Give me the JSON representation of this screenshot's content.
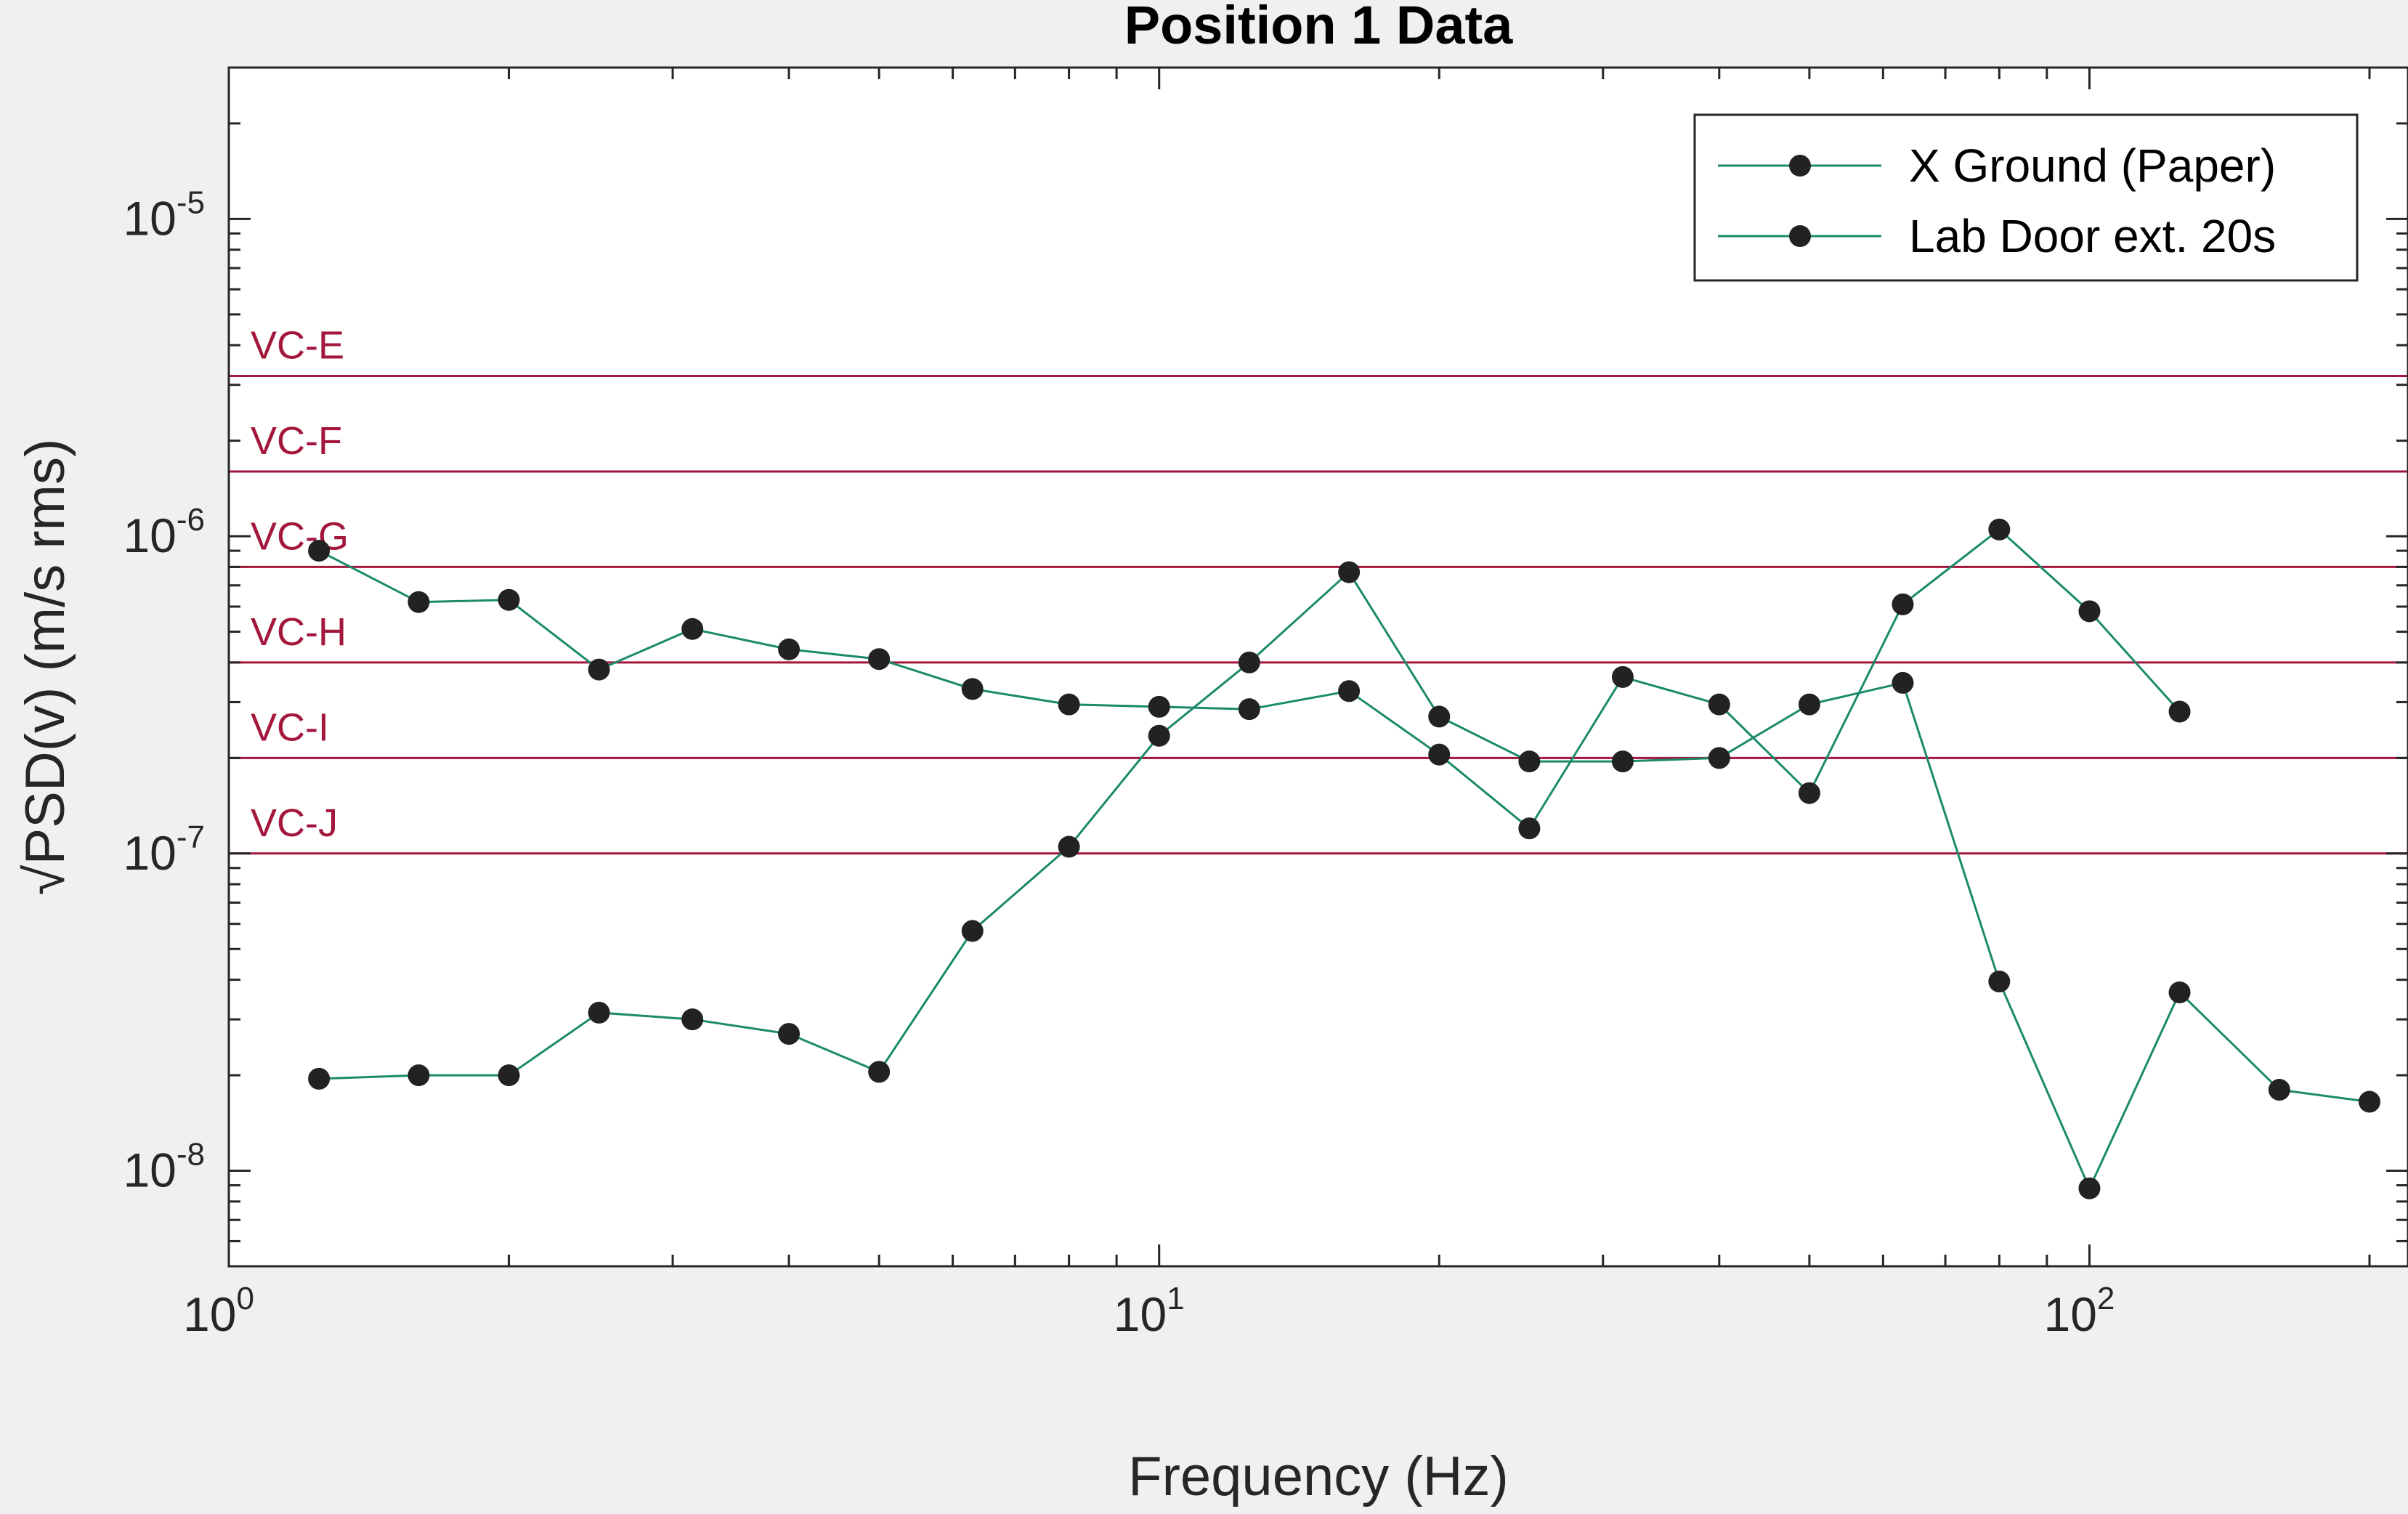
{
  "chart_data": {
    "type": "line",
    "title": "Position 1 Data",
    "xlabel": "Frequency (Hz)",
    "ylabel": "√PSD(v) (m/s rms)",
    "xscale": "log",
    "yscale": "log",
    "xlim": [
      1,
      220
    ],
    "ylim": [
      5e-09,
      3e-05
    ],
    "x_ticks": [
      {
        "base": "10",
        "exp": "0",
        "value": 1
      },
      {
        "base": "10",
        "exp": "1",
        "value": 10
      },
      {
        "base": "10",
        "exp": "2",
        "value": 100
      }
    ],
    "y_ticks": [
      {
        "base": "10",
        "exp": "-8",
        "value": 1e-08
      },
      {
        "base": "10",
        "exp": "-7",
        "value": 1e-07
      },
      {
        "base": "10",
        "exp": "-6",
        "value": 1e-06
      },
      {
        "base": "10",
        "exp": "-5",
        "value": 1e-05
      }
    ],
    "grid": false,
    "legend_position": "top-right",
    "line_color": "#1b8a6b",
    "marker_color": "#222222",
    "series": [
      {
        "name": "X Ground (Paper)",
        "x": [
          1.25,
          1.6,
          2,
          2.5,
          3.15,
          4,
          5,
          6.3,
          8,
          10,
          12.5,
          16,
          20,
          25,
          31.5,
          40,
          50,
          63,
          80,
          100,
          125
        ],
        "y": [
          9e-07,
          6.2e-07,
          6.3e-07,
          3.8e-07,
          5.1e-07,
          4.4e-07,
          4.1e-07,
          3.3e-07,
          2.95e-07,
          2.9e-07,
          2.85e-07,
          3.25e-07,
          2.05e-07,
          1.2e-07,
          3.6e-07,
          2.95e-07,
          1.55e-07,
          6.1e-07,
          1.05e-06,
          5.8e-07,
          2.8e-07
        ]
      },
      {
        "name": "Lab Door ext. 20s",
        "x": [
          1.25,
          1.6,
          2,
          2.5,
          3.15,
          4,
          5,
          6.3,
          8,
          10,
          12.5,
          16,
          20,
          25,
          31.5,
          40,
          50,
          63,
          80,
          100,
          125,
          160,
          200
        ],
        "y": [
          1.95e-08,
          2e-08,
          2e-08,
          3.15e-08,
          3e-08,
          2.7e-08,
          2.05e-08,
          5.7e-08,
          1.05e-07,
          2.35e-07,
          4e-07,
          7.7e-07,
          2.7e-07,
          1.95e-07,
          1.95e-07,
          2e-07,
          2.95e-07,
          3.45e-07,
          3.95e-08,
          8.8e-09,
          3.65e-08,
          1.8e-08,
          1.65e-08
        ]
      }
    ],
    "reference_lines": [
      {
        "label": "VC-E",
        "value": 3.2e-06,
        "color": "#a3173c"
      },
      {
        "label": "VC-F",
        "value": 1.6e-06,
        "color": "#a3173c"
      },
      {
        "label": "VC-G",
        "value": 8e-07,
        "color": "#a3173c"
      },
      {
        "label": "VC-H",
        "value": 4e-07,
        "color": "#a3173c"
      },
      {
        "label": "VC-I",
        "value": 2e-07,
        "color": "#a3173c"
      },
      {
        "label": "VC-J",
        "value": 1e-07,
        "color": "#a3173c"
      }
    ]
  }
}
